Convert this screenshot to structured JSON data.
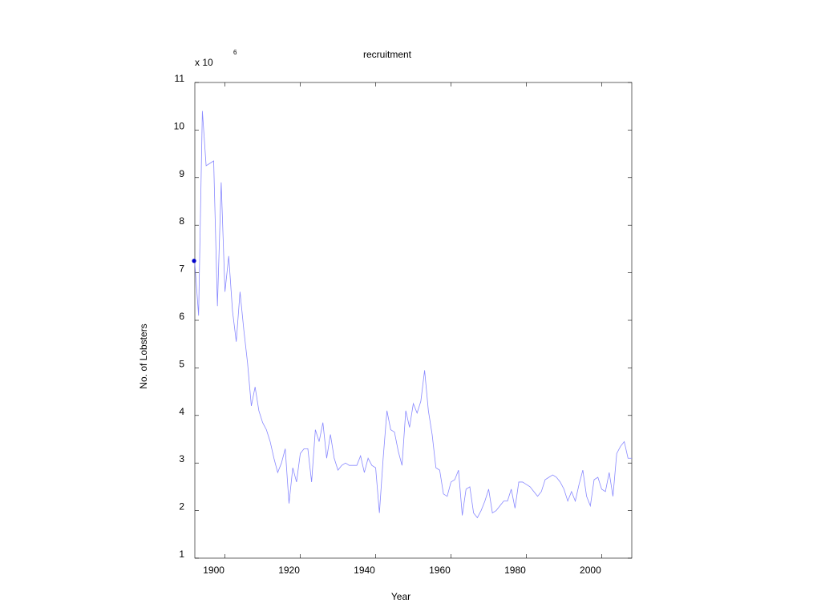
{
  "chart_data": {
    "type": "line",
    "title": "recruitment",
    "xlabel": "Year",
    "ylabel": "No. of Lobsters",
    "y_multiplier_base": "x 10",
    "y_multiplier_exponent": "6",
    "xlim": [
      1892,
      2008
    ],
    "ylim": [
      1,
      11
    ],
    "x_ticks": [
      1900,
      1920,
      1940,
      1960,
      1980,
      2000
    ],
    "y_ticks": [
      1,
      2,
      3,
      4,
      5,
      6,
      7,
      8,
      9,
      10,
      11
    ],
    "grid": false,
    "line_color": "#8888ff",
    "marker_color": "#0000cc",
    "marker": {
      "x": 1891.8,
      "y": 7.25
    },
    "series": [
      {
        "x": [
          1892,
          1893,
          1894,
          1895,
          1896,
          1897,
          1898,
          1899,
          1900,
          1901,
          1902,
          1903,
          1904,
          1905,
          1906,
          1907,
          1908,
          1909,
          1910,
          1911,
          1912,
          1913,
          1914,
          1915,
          1916,
          1917,
          1918,
          1919,
          1920,
          1921,
          1922,
          1923,
          1924,
          1925,
          1926,
          1927,
          1928,
          1929,
          1930,
          1931,
          1932,
          1933,
          1934,
          1935,
          1936,
          1937,
          1938,
          1939,
          1940,
          1941,
          1942,
          1943,
          1944,
          1945,
          1946,
          1947,
          1948,
          1949,
          1950,
          1951,
          1952,
          1953,
          1954,
          1955,
          1956,
          1957,
          1958,
          1959,
          1960,
          1961,
          1962,
          1963,
          1964,
          1965,
          1966,
          1967,
          1968,
          1969,
          1970,
          1971,
          1972,
          1973,
          1974,
          1975,
          1976,
          1977,
          1978,
          1979,
          1980,
          1981,
          1982,
          1983,
          1984,
          1985,
          1986,
          1987,
          1988,
          1989,
          1990,
          1991,
          1992,
          1993,
          1994,
          1995,
          1996,
          1997,
          1998,
          1999,
          2000,
          2001,
          2002,
          2003,
          2004,
          2005,
          2006,
          2007,
          2008
        ],
        "values": [
          7.2,
          6.1,
          10.4,
          9.25,
          9.3,
          9.35,
          6.3,
          8.9,
          6.6,
          7.35,
          6.2,
          5.55,
          6.6,
          5.8,
          5.1,
          4.2,
          4.6,
          4.1,
          3.85,
          3.7,
          3.45,
          3.1,
          2.8,
          3.0,
          3.3,
          2.15,
          2.9,
          2.6,
          3.2,
          3.3,
          3.3,
          2.6,
          3.7,
          3.45,
          3.85,
          3.1,
          3.6,
          3.1,
          2.85,
          2.95,
          3.0,
          2.95,
          2.95,
          2.95,
          3.15,
          2.8,
          3.1,
          2.95,
          2.9,
          1.95,
          3.1,
          4.1,
          3.7,
          3.65,
          3.25,
          2.95,
          4.1,
          3.75,
          4.25,
          4.05,
          4.3,
          4.95,
          4.1,
          3.6,
          2.9,
          2.85,
          2.35,
          2.3,
          2.6,
          2.65,
          2.85,
          1.9,
          2.45,
          2.5,
          1.95,
          1.85,
          2.0,
          2.2,
          2.45,
          1.95,
          2.0,
          2.1,
          2.2,
          2.2,
          2.45,
          2.05,
          2.6,
          2.6,
          2.55,
          2.5,
          2.4,
          2.3,
          2.4,
          2.65,
          2.7,
          2.75,
          2.7,
          2.6,
          2.45,
          2.2,
          2.4,
          2.2,
          2.55,
          2.85,
          2.3,
          2.1,
          2.65,
          2.7,
          2.45,
          2.4,
          2.8,
          2.3,
          3.2,
          3.35,
          3.45,
          3.1,
          3.1
        ]
      }
    ]
  }
}
